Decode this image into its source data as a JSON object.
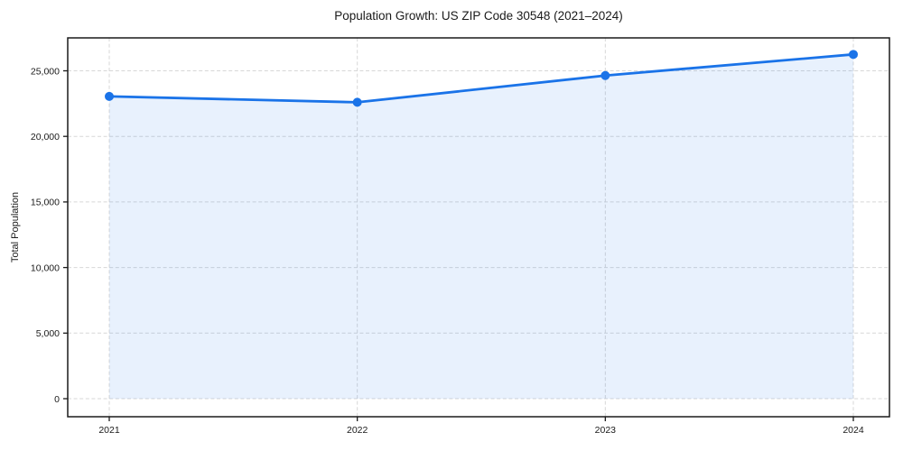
{
  "chart_data": {
    "type": "area",
    "title": "Population Growth: US ZIP Code 30548 (2021–2024)",
    "xlabel": "",
    "ylabel": "Total Population",
    "x": [
      2021,
      2022,
      2023,
      2024
    ],
    "x_tick_labels": [
      "2021",
      "2022",
      "2023",
      "2024"
    ],
    "series": [
      {
        "name": "Total Population",
        "values": [
          23050,
          22600,
          24640,
          26250
        ]
      }
    ],
    "y_ticks": [
      0,
      5000,
      10000,
      15000,
      20000,
      25000
    ],
    "y_tick_labels": [
      "0",
      "5,000",
      "10,000",
      "15,000",
      "20,000",
      "25,000"
    ],
    "ylim": [
      -1380,
      27510
    ],
    "grid": "dashed, horizontal and vertical at major ticks",
    "legend": "none",
    "marker": "filled-circle",
    "fill_to_zero": true,
    "colors": {
      "line": "#1a73e8",
      "marker": "#1a73e8",
      "fill": "rgba(26,115,232,0.10)",
      "grid": "#d7d7d7",
      "spine": "#1a1a1a",
      "text": "#1a1a1a",
      "background": "#ffffff"
    }
  }
}
